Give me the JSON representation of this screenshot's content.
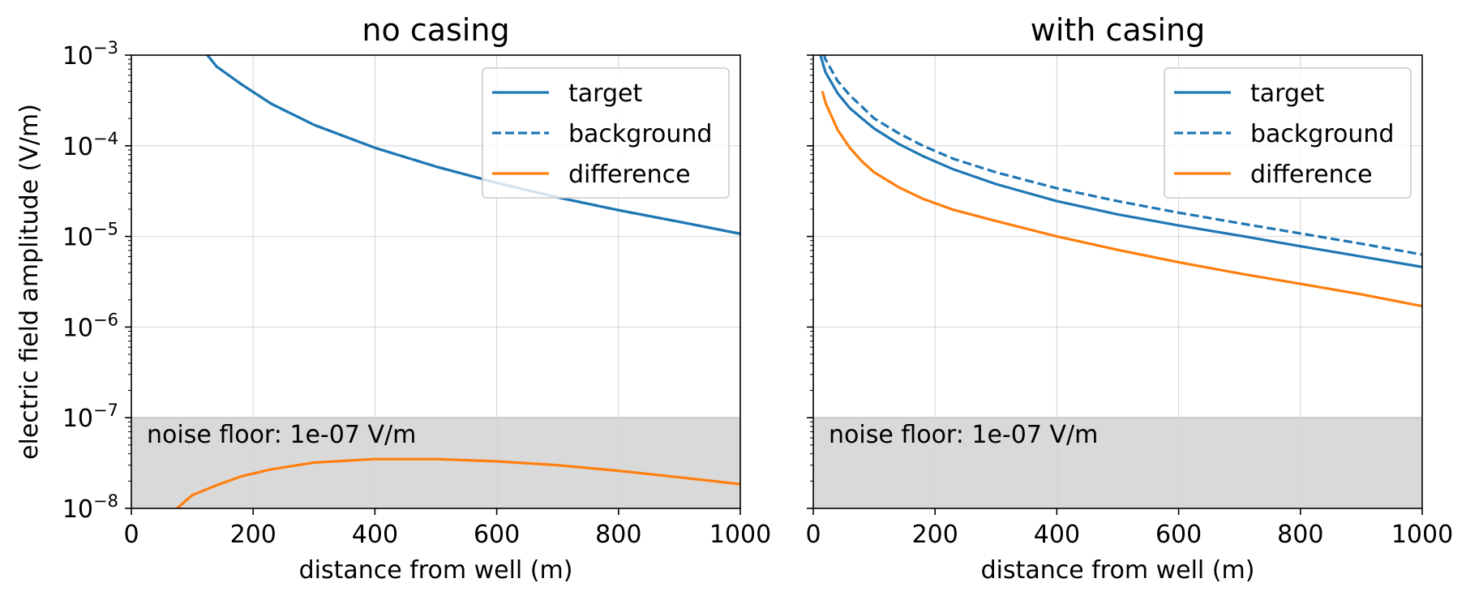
{
  "chart_data": [
    {
      "type": "line",
      "title": "no casing",
      "xlabel": "distance from well (m)",
      "ylabel": "electric field amplitude (V/m)",
      "xlim": [
        0,
        1000
      ],
      "ylim": [
        1e-08,
        0.001
      ],
      "yscale": "log",
      "grid": true,
      "x_ticks": [
        "0",
        "200",
        "400",
        "600",
        "800",
        "1000"
      ],
      "y_ticks": [
        {
          "base": "10",
          "exp": "−8"
        },
        {
          "base": "10",
          "exp": "−7"
        },
        {
          "base": "10",
          "exp": "−6"
        },
        {
          "base": "10",
          "exp": "−5"
        },
        {
          "base": "10",
          "exp": "−4"
        },
        {
          "base": "10",
          "exp": "−3"
        }
      ],
      "legend_position": "top-right",
      "noise_floor": {
        "value": 1e-07,
        "label": "noise floor: 1e-07 V/m"
      },
      "series": [
        {
          "name": "target",
          "color": "#1f77b4",
          "style": "solid",
          "x": [
            100,
            120,
            140,
            180,
            230,
            300,
            400,
            500,
            600,
            700,
            800,
            900,
            1000
          ],
          "y": [
            0.0017,
            0.0011,
            0.00075,
            0.00048,
            0.00029,
            0.00017,
            9.5e-05,
            5.9e-05,
            3.9e-05,
            2.7e-05,
            1.95e-05,
            1.45e-05,
            1.07e-05
          ]
        },
        {
          "name": "background",
          "color": "#1f77b4",
          "style": "dashed",
          "x": [
            100,
            120,
            140,
            180,
            230,
            300,
            400,
            500,
            600,
            700,
            800,
            900,
            1000
          ],
          "y": [
            0.0017,
            0.0011,
            0.00075,
            0.00048,
            0.00029,
            0.00017,
            9.5e-05,
            5.9e-05,
            3.9e-05,
            2.7e-05,
            1.95e-05,
            1.45e-05,
            1.07e-05
          ]
        },
        {
          "name": "difference",
          "color": "#ff7f0e",
          "style": "solid",
          "x": [
            75,
            100,
            140,
            180,
            230,
            300,
            400,
            500,
            600,
            700,
            800,
            900,
            1000
          ],
          "y": [
            1e-08,
            1.4e-08,
            1.8e-08,
            2.25e-08,
            2.7e-08,
            3.2e-08,
            3.5e-08,
            3.5e-08,
            3.3e-08,
            3e-08,
            2.6e-08,
            2.2e-08,
            1.85e-08
          ]
        }
      ]
    },
    {
      "type": "line",
      "title": "with casing",
      "xlabel": "distance from well (m)",
      "ylabel": "",
      "xlim": [
        0,
        1000
      ],
      "ylim": [
        1e-08,
        0.001
      ],
      "yscale": "log",
      "grid": true,
      "x_ticks": [
        "0",
        "200",
        "400",
        "600",
        "800",
        "1000"
      ],
      "legend_position": "top-right",
      "noise_floor": {
        "value": 1e-07,
        "label": "noise floor: 1e-07 V/m"
      },
      "series": [
        {
          "name": "target",
          "color": "#1f77b4",
          "style": "solid",
          "x": [
            10,
            20,
            40,
            60,
            80,
            100,
            140,
            180,
            230,
            300,
            400,
            500,
            600,
            700,
            800,
            900,
            1000
          ],
          "y": [
            0.0011,
            0.00065,
            0.00038,
            0.00026,
            0.0002,
            0.000155,
            0.000105,
            7.7e-05,
            5.5e-05,
            3.78e-05,
            2.45e-05,
            1.75e-05,
            1.32e-05,
            1.02e-05,
            7.8e-06,
            6e-06,
            4.6e-06
          ]
        },
        {
          "name": "background",
          "color": "#1f77b4",
          "style": "dashed",
          "x": [
            10,
            20,
            40,
            60,
            80,
            100,
            140,
            180,
            230,
            300,
            400,
            500,
            600,
            700,
            800,
            900,
            1000
          ],
          "y": [
            0.0014,
            0.0009,
            0.00052,
            0.00036,
            0.00027,
            0.0002,
            0.000138,
            0.0001,
            7.2e-05,
            5.1e-05,
            3.4e-05,
            2.45e-05,
            1.83e-05,
            1.4e-05,
            1.08e-05,
            8.3e-06,
            6.3e-06
          ]
        },
        {
          "name": "difference",
          "color": "#ff7f0e",
          "style": "solid",
          "x": [
            15,
            20,
            40,
            60,
            80,
            100,
            140,
            180,
            230,
            300,
            400,
            500,
            600,
            700,
            800,
            900,
            1000
          ],
          "y": [
            0.0004,
            0.0003,
            0.00015,
            9.5e-05,
            6.7e-05,
            5.1e-05,
            3.5e-05,
            2.6e-05,
            1.97e-05,
            1.48e-05,
            1e-05,
            7.1e-06,
            5.2e-06,
            3.9e-06,
            3e-06,
            2.3e-06,
            1.7e-06
          ]
        }
      ]
    }
  ]
}
